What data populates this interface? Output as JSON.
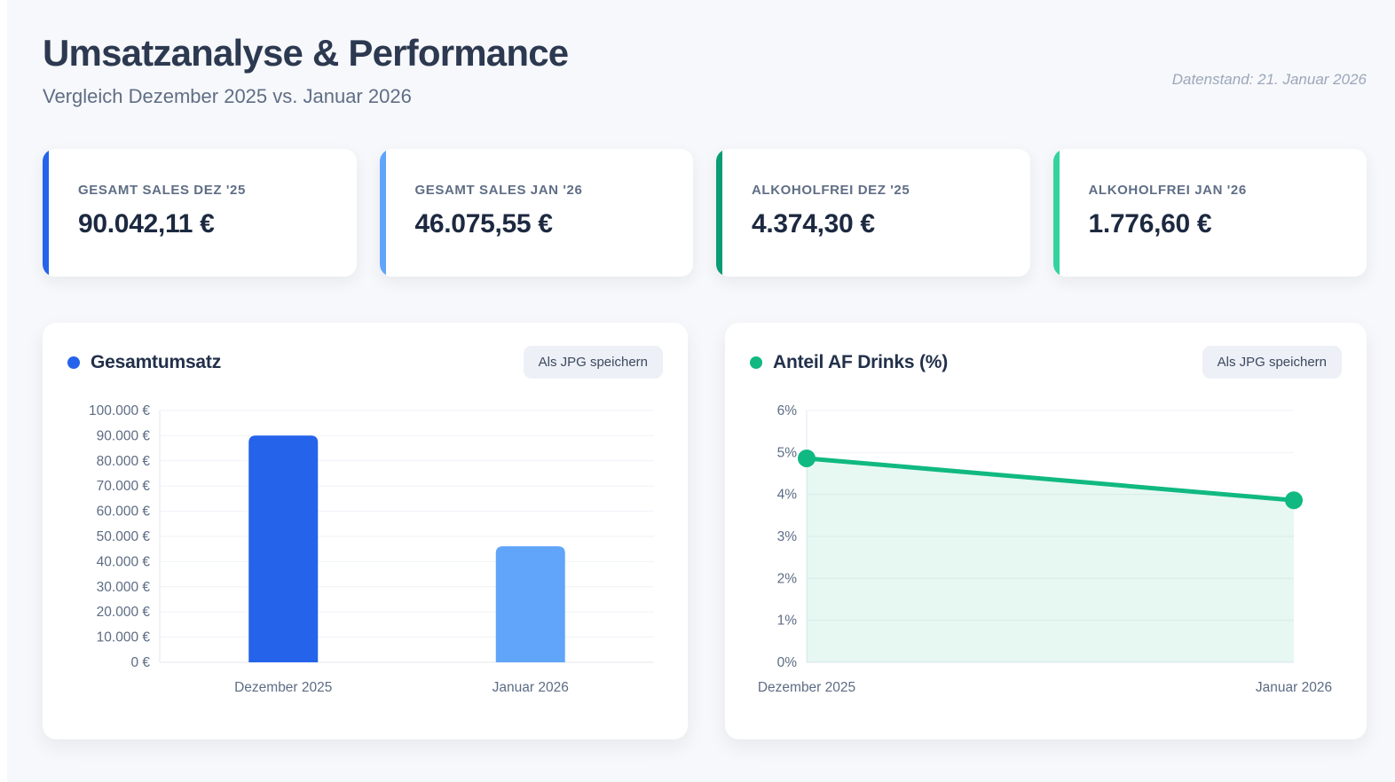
{
  "page": {
    "title": "Umsatzanalyse & Performance",
    "subtitle": "Vergleich Dezember 2025 vs. Januar 2026",
    "datenstand": "Datenstand: 21. Januar 2026"
  },
  "kpis": [
    {
      "label": "GESAMT SALES DEZ '25",
      "value": "90.042,11 €",
      "accent": "#2563eb"
    },
    {
      "label": "GESAMT SALES JAN '26",
      "value": "46.075,55 €",
      "accent": "#60a5fa"
    },
    {
      "label": "ALKOHOLFREI DEZ '25",
      "value": "4.374,30 €",
      "accent": "#0a9c74"
    },
    {
      "label": "ALKOHOLFREI JAN '26",
      "value": "1.776,60 €",
      "accent": "#34d39d"
    }
  ],
  "charts": [
    {
      "legend_label": "Gesamtumsatz",
      "dot_color": "#2563eb",
      "save_button_label": "Als JPG speichern"
    },
    {
      "legend_label": "Anteil AF Drinks (%)",
      "dot_color": "#10b981",
      "save_button_label": "Als JPG speichern"
    }
  ],
  "chart_data": [
    {
      "type": "bar",
      "title": "Gesamtumsatz",
      "categories": [
        "Dezember 2025",
        "Januar 2026"
      ],
      "values": [
        90042.11,
        46075.55
      ],
      "bar_colors": [
        "#2563eb",
        "#60a5fa"
      ],
      "xlabel": "",
      "ylabel": "",
      "ylim": [
        0,
        100000
      ],
      "ytick_step": 10000,
      "ytick_labels": [
        "0 €",
        "10.000 €",
        "20.000 €",
        "30.000 €",
        "40.000 €",
        "50.000 €",
        "60.000 €",
        "70.000 €",
        "80.000 €",
        "90.000 €",
        "100.000 €"
      ],
      "grid": true,
      "legend_position": "top-left"
    },
    {
      "type": "line",
      "title": "Anteil AF Drinks (%)",
      "categories": [
        "Dezember 2025",
        "Januar 2026"
      ],
      "values": [
        4.86,
        3.86
      ],
      "line_color": "#10b981",
      "area_fill": "rgba(16,185,129,0.10)",
      "xlabel": "",
      "ylabel": "",
      "ylim": [
        0,
        6
      ],
      "ytick_step": 1,
      "ytick_labels": [
        "0%",
        "1%",
        "2%",
        "3%",
        "4%",
        "5%",
        "6%"
      ],
      "grid": true,
      "legend_position": "top-left"
    }
  ],
  "style": {
    "grid_color": "#f0f2f8",
    "axis_color": "#e3e7ef",
    "tick_color": "#5d6c84"
  }
}
